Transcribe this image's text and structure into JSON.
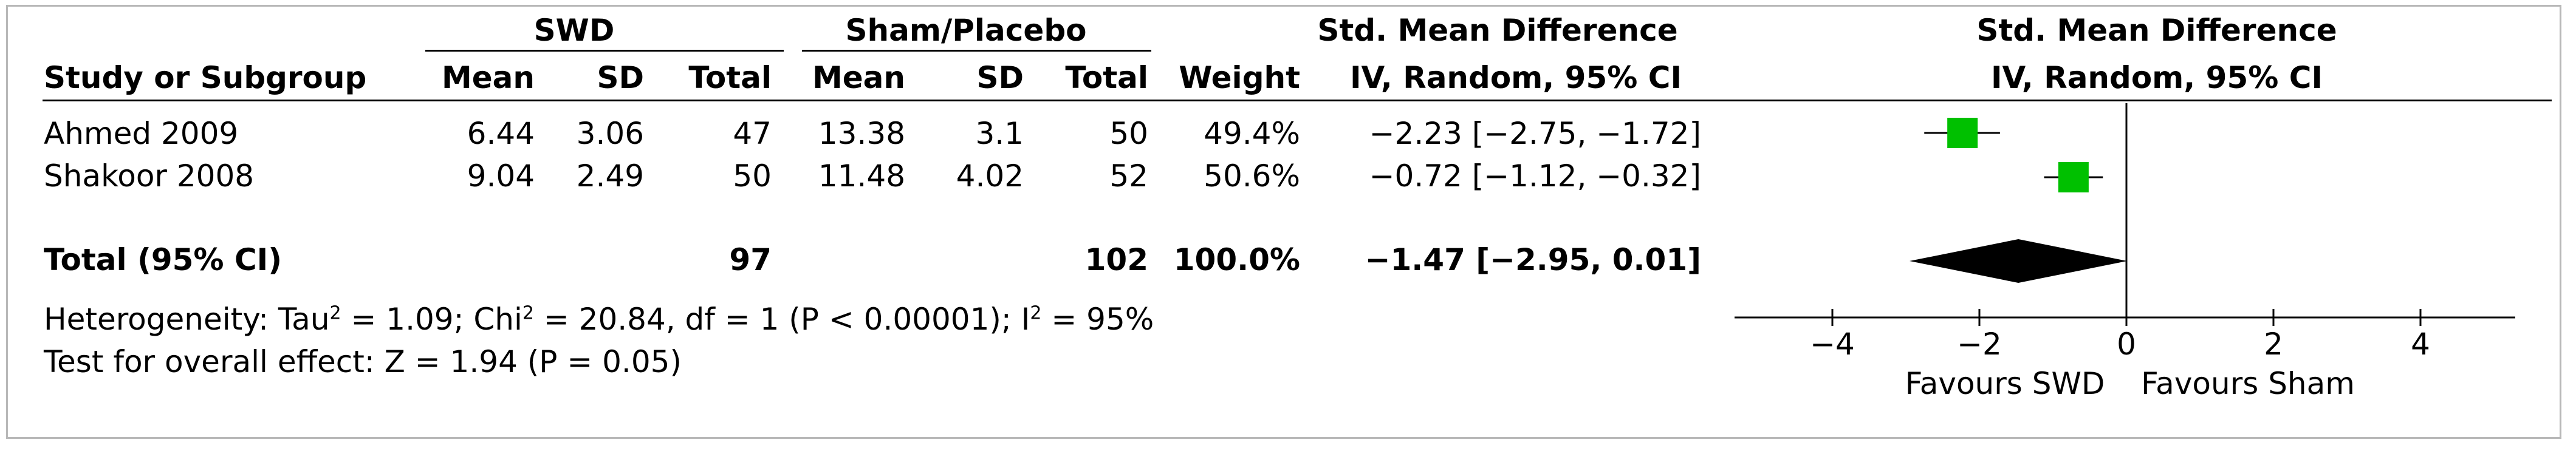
{
  "headers": {
    "group1": "SWD",
    "group2": "Sham/Placebo",
    "smd_group": "Std. Mean Difference",
    "plot_group": "Std. Mean Difference",
    "study": "Study or Subgroup",
    "mean": "Mean",
    "sd": "SD",
    "total": "Total",
    "weight": "Weight",
    "method": "IV, Random, 95% CI",
    "plot_method": "IV, Random, 95% CI"
  },
  "studies": [
    {
      "name": "Ahmed 2009",
      "mean1": "6.44",
      "sd1": "3.06",
      "total1": "47",
      "mean2": "13.38",
      "sd2": "3.1",
      "total2": "50",
      "weight": "49.4%",
      "ci_text": "−2.23 [−2.75, −1.72]"
    },
    {
      "name": "Shakoor 2008",
      "mean1": "9.04",
      "sd1": "2.49",
      "total1": "50",
      "mean2": "11.48",
      "sd2": "4.02",
      "total2": "52",
      "weight": "50.6%",
      "ci_text": "−0.72 [−1.12, −0.32]"
    }
  ],
  "total": {
    "label": "Total (95% CI)",
    "total1": "97",
    "total2": "102",
    "weight": "100.0%",
    "ci_text": "−1.47 [−2.95, 0.01]"
  },
  "heterogeneity": {
    "prefix": "Heterogeneity: Tau",
    "tau_sup": "2",
    "mid1": " = 1.09; Chi",
    "chi_sup": "2",
    "mid2": " = 20.84, df = 1 (P < 0.00001); I",
    "i_sup": "2",
    "end": " = 95%"
  },
  "overall_effect": "Test for overall effect: Z = 1.94 (P = 0.05)",
  "axis": {
    "favours_left": "Favours SWD",
    "favours_right": "Favours Sham"
  },
  "colors": {
    "marker": "#00c000",
    "diamond": "#000000",
    "frame": "#b8b8b8"
  },
  "chart_data": {
    "type": "forest",
    "x_ticks": [
      -4,
      -2,
      0,
      2,
      4
    ],
    "x_tick_labels": [
      "−4",
      "−2",
      "0",
      "2",
      "4"
    ],
    "xlim": [
      -4,
      4
    ],
    "points": [
      {
        "study": "Ahmed 2009",
        "estimate": -2.23,
        "lower": -2.75,
        "upper": -1.72,
        "weight": 49.4
      },
      {
        "study": "Shakoor 2008",
        "estimate": -0.72,
        "lower": -1.12,
        "upper": -0.32,
        "weight": 50.6
      }
    ],
    "pooled": {
      "estimate": -1.47,
      "lower": -2.95,
      "upper": 0.01
    }
  }
}
